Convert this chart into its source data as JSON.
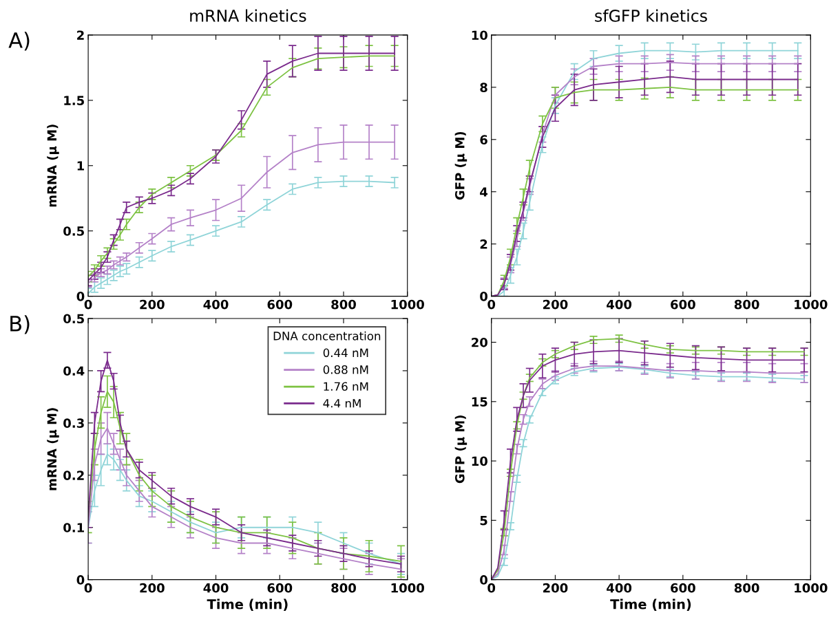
{
  "chart_data": [
    {
      "type": "line",
      "title": "mRNA kinetics",
      "ylabel": "mRNA (μ M)",
      "annotations": [
        "A)"
      ],
      "xlim": [
        0,
        1000
      ],
      "xticks": [
        0,
        200,
        400,
        600,
        800,
        1000
      ],
      "ylim": [
        0,
        2
      ],
      "yticks": [
        0,
        0.5,
        1,
        1.5,
        2
      ],
      "grid": false,
      "legend": false,
      "marker": "none",
      "line_style": "solid",
      "x": [
        0,
        20,
        40,
        60,
        80,
        100,
        120,
        160,
        200,
        260,
        320,
        400,
        480,
        560,
        640,
        720,
        800,
        880,
        960
      ],
      "series": [
        {
          "color": "#8fd4d8",
          "values": [
            0.02,
            0.07,
            0.1,
            0.13,
            0.16,
            0.19,
            0.21,
            0.26,
            0.31,
            0.38,
            0.43,
            0.5,
            0.57,
            0.7,
            0.82,
            0.87,
            0.88,
            0.88,
            0.87
          ],
          "errors": [
            0.04,
            0.04,
            0.04,
            0.04,
            0.04,
            0.04,
            0.04,
            0.04,
            0.04,
            0.04,
            0.04,
            0.04,
            0.04,
            0.04,
            0.04,
            0.04,
            0.04,
            0.04,
            0.04
          ]
        },
        {
          "color": "#b481c8",
          "values": [
            0.1,
            0.14,
            0.18,
            0.2,
            0.24,
            0.27,
            0.3,
            0.37,
            0.44,
            0.55,
            0.6,
            0.66,
            0.75,
            0.95,
            1.1,
            1.16,
            1.18,
            1.18,
            1.18
          ],
          "errors": [
            0.03,
            0.03,
            0.03,
            0.03,
            0.03,
            0.03,
            0.03,
            0.04,
            0.04,
            0.05,
            0.06,
            0.08,
            0.1,
            0.12,
            0.13,
            0.13,
            0.13,
            0.13,
            0.13
          ]
        },
        {
          "color": "#7dc242",
          "values": [
            0.15,
            0.2,
            0.27,
            0.33,
            0.4,
            0.47,
            0.55,
            0.68,
            0.78,
            0.87,
            0.96,
            1.08,
            1.27,
            1.6,
            1.75,
            1.82,
            1.83,
            1.84,
            1.84
          ],
          "errors": [
            0.04,
            0.04,
            0.04,
            0.04,
            0.04,
            0.04,
            0.04,
            0.04,
            0.04,
            0.04,
            0.04,
            0.04,
            0.05,
            0.06,
            0.07,
            0.08,
            0.08,
            0.08,
            0.08
          ]
        },
        {
          "color": "#7a2a8c",
          "values": [
            0.12,
            0.17,
            0.22,
            0.3,
            0.43,
            0.55,
            0.68,
            0.72,
            0.75,
            0.81,
            0.9,
            1.07,
            1.35,
            1.7,
            1.8,
            1.86,
            1.86,
            1.86,
            1.86
          ],
          "errors": [
            0.04,
            0.04,
            0.04,
            0.04,
            0.04,
            0.04,
            0.04,
            0.04,
            0.04,
            0.04,
            0.04,
            0.05,
            0.07,
            0.1,
            0.12,
            0.13,
            0.13,
            0.13,
            0.13
          ]
        }
      ]
    },
    {
      "type": "line",
      "title": "sfGFP kinetics",
      "ylabel": "GFP (μ M)",
      "xlim": [
        0,
        1000
      ],
      "xticks": [
        0,
        200,
        400,
        600,
        800,
        1000
      ],
      "ylim": [
        0,
        10
      ],
      "yticks": [
        0,
        2,
        4,
        6,
        8,
        10
      ],
      "grid": false,
      "legend": false,
      "marker": "none",
      "line_style": "solid",
      "x": [
        0,
        20,
        40,
        60,
        80,
        100,
        120,
        160,
        200,
        260,
        320,
        400,
        480,
        560,
        640,
        720,
        800,
        880,
        960
      ],
      "series": [
        {
          "color": "#8fd4d8",
          "values": [
            0,
            0,
            0.2,
            0.8,
            1.5,
            2.5,
            3.6,
            5.8,
            7.3,
            8.6,
            9.1,
            9.3,
            9.4,
            9.4,
            9.35,
            9.4,
            9.4,
            9.4,
            9.4
          ],
          "errors": [
            null,
            null,
            0.2,
            0.3,
            0.3,
            0.3,
            0.3,
            0.3,
            0.3,
            0.3,
            0.3,
            0.3,
            0.3,
            0.3,
            0.3,
            0.3,
            0.3,
            0.3,
            0.3
          ]
        },
        {
          "color": "#b481c8",
          "values": [
            0,
            0.05,
            0.5,
            1.2,
            2.2,
            3.2,
            4.2,
            6.2,
            7.7,
            8.4,
            8.8,
            8.9,
            8.9,
            8.95,
            8.9,
            8.9,
            8.9,
            8.9,
            8.9
          ],
          "errors": [
            null,
            null,
            0.2,
            0.3,
            0.3,
            0.3,
            0.3,
            0.3,
            0.3,
            0.3,
            0.3,
            0.3,
            0.3,
            0.3,
            0.3,
            0.3,
            0.3,
            0.3,
            0.3
          ]
        },
        {
          "color": "#7dc242",
          "values": [
            0,
            0.05,
            0.6,
            1.5,
            2.7,
            3.8,
            4.9,
            6.6,
            7.6,
            7.8,
            7.9,
            7.9,
            7.95,
            8.0,
            7.9,
            7.9,
            7.9,
            7.9,
            7.9
          ],
          "errors": [
            null,
            null,
            0.2,
            0.3,
            0.3,
            0.3,
            0.3,
            0.3,
            0.4,
            0.4,
            0.4,
            0.4,
            0.4,
            0.4,
            0.4,
            0.4,
            0.4,
            0.4,
            0.4
          ]
        },
        {
          "color": "#7a2a8c",
          "values": [
            0,
            0.05,
            0.45,
            1.3,
            2.4,
            3.3,
            4.3,
            6.1,
            7.2,
            7.9,
            8.1,
            8.2,
            8.3,
            8.4,
            8.3,
            8.3,
            8.3,
            8.3,
            8.3
          ],
          "errors": [
            null,
            null,
            0.2,
            0.3,
            0.3,
            0.3,
            0.3,
            0.4,
            0.5,
            0.6,
            0.6,
            0.6,
            0.6,
            0.6,
            0.6,
            0.6,
            0.6,
            0.6,
            0.6
          ]
        }
      ]
    },
    {
      "type": "line",
      "xlabel": "Time (min)",
      "ylabel": "mRNA (μ M)",
      "annotations": [
        "B)"
      ],
      "legend_title": "DNA concentration",
      "xlim": [
        0,
        1000
      ],
      "xticks": [
        0,
        200,
        400,
        600,
        800,
        1000
      ],
      "ylim": [
        0,
        0.5
      ],
      "yticks": [
        0,
        0.1,
        0.2,
        0.3,
        0.4,
        0.5
      ],
      "grid": false,
      "legend": "top right",
      "marker": "none",
      "line_style": "solid",
      "x": [
        0,
        20,
        40,
        60,
        80,
        100,
        120,
        160,
        200,
        260,
        320,
        400,
        480,
        560,
        640,
        720,
        800,
        880,
        980
      ],
      "series": [
        {
          "name": "0.44 nM",
          "color": "#8fd4d8",
          "values": [
            0.1,
            0.17,
            0.21,
            0.24,
            0.23,
            0.21,
            0.19,
            0.16,
            0.15,
            0.13,
            0.11,
            0.09,
            0.1,
            0.1,
            0.1,
            0.09,
            0.07,
            0.05,
            0.03
          ],
          "errors": [
            0.03,
            0.03,
            0.03,
            0.02,
            0.02,
            0.02,
            0.02,
            0.02,
            0.02,
            0.02,
            0.02,
            0.02,
            0.02,
            0.02,
            0.02,
            0.02,
            0.02,
            0.02,
            0.02
          ]
        },
        {
          "name": "0.88 nM",
          "color": "#b481c8",
          "values": [
            0.1,
            0.22,
            0.27,
            0.29,
            0.26,
            0.23,
            0.2,
            0.17,
            0.14,
            0.12,
            0.1,
            0.08,
            0.07,
            0.07,
            0.06,
            0.05,
            0.04,
            0.03,
            0.02
          ],
          "errors": [
            0.03,
            0.03,
            0.03,
            0.03,
            0.02,
            0.02,
            0.02,
            0.02,
            0.02,
            0.02,
            0.02,
            0.02,
            0.02,
            0.02,
            0.02,
            0.02,
            0.02,
            0.02,
            0.02
          ]
        },
        {
          "name": "1.76 nM",
          "color": "#7dc242",
          "values": [
            0.12,
            0.25,
            0.32,
            0.36,
            0.34,
            0.29,
            0.25,
            0.2,
            0.17,
            0.14,
            0.12,
            0.1,
            0.09,
            0.09,
            0.08,
            0.06,
            0.05,
            0.045,
            0.035
          ],
          "errors": [
            0.03,
            0.03,
            0.03,
            0.03,
            0.03,
            0.03,
            0.03,
            0.03,
            0.03,
            0.03,
            0.03,
            0.03,
            0.03,
            0.03,
            0.03,
            0.03,
            0.03,
            0.03,
            0.03
          ]
        },
        {
          "name": "4.4 nM",
          "color": "#7a2a8c",
          "values": [
            0.12,
            0.3,
            0.38,
            0.42,
            0.38,
            0.3,
            0.25,
            0.21,
            0.19,
            0.16,
            0.14,
            0.12,
            0.09,
            0.08,
            0.07,
            0.06,
            0.05,
            0.04,
            0.03
          ],
          "errors": [
            0.02,
            0.02,
            0.02,
            0.015,
            0.015,
            0.015,
            0.015,
            0.015,
            0.015,
            0.015,
            0.015,
            0.015,
            0.015,
            0.015,
            0.015,
            0.015,
            0.015,
            0.015,
            0.015
          ]
        }
      ]
    },
    {
      "type": "line",
      "xlabel": "Time (min)",
      "ylabel": "GFP (μ M)",
      "xlim": [
        0,
        1000
      ],
      "xticks": [
        0,
        200,
        400,
        600,
        800,
        1000
      ],
      "ylim": [
        0,
        22
      ],
      "yticks": [
        0,
        5,
        10,
        15,
        20
      ],
      "grid": false,
      "legend": false,
      "marker": "none",
      "line_style": "solid",
      "x": [
        0,
        20,
        40,
        60,
        80,
        100,
        120,
        160,
        200,
        260,
        320,
        400,
        480,
        560,
        640,
        720,
        800,
        880,
        980
      ],
      "series": [
        {
          "color": "#8fd4d8",
          "values": [
            0,
            0.3,
            1.5,
            4.5,
            8.5,
            11.5,
            13.5,
            15.8,
            16.8,
            17.5,
            17.8,
            17.9,
            17.7,
            17.4,
            17.2,
            17.1,
            17.1,
            17,
            16.9
          ],
          "errors": [
            null,
            null,
            0.3,
            0.3,
            0.3,
            0.3,
            0.3,
            0.3,
            0.3,
            0.3,
            0.3,
            0.3,
            0.3,
            0.3,
            0.3,
            0.3,
            0.3,
            0.3,
            0.3
          ]
        },
        {
          "color": "#b481c8",
          "values": [
            0,
            0.5,
            2.5,
            7,
            11,
            13.5,
            15,
            16.5,
            17.2,
            17.8,
            18,
            18,
            17.8,
            17.6,
            17.6,
            17.5,
            17.5,
            17.4,
            17.4
          ],
          "errors": [
            null,
            null,
            0.4,
            0.4,
            0.4,
            0.4,
            0.4,
            0.4,
            0.4,
            0.4,
            0.4,
            0.4,
            0.5,
            0.6,
            0.7,
            0.8,
            0.8,
            0.8,
            0.8
          ]
        },
        {
          "color": "#7dc242",
          "values": [
            0,
            0.8,
            4,
            9,
            13,
            15.5,
            17,
            18.3,
            19,
            19.7,
            20.2,
            20.3,
            19.8,
            19.4,
            19.3,
            19.3,
            19.2,
            19.2,
            19.2
          ],
          "errors": [
            null,
            null,
            0.3,
            0.3,
            0.3,
            0.3,
            0.3,
            0.3,
            0.3,
            0.3,
            0.3,
            0.3,
            0.3,
            0.3,
            0.3,
            0.3,
            0.3,
            0.3,
            0.3
          ]
        },
        {
          "color": "#7a2a8c",
          "values": [
            0,
            1,
            5,
            10,
            13.5,
            15.5,
            16.8,
            18,
            18.5,
            19,
            19.2,
            19.3,
            19.1,
            18.9,
            18.7,
            18.6,
            18.5,
            18.5,
            18.5
          ],
          "errors": [
            null,
            null,
            0.8,
            1,
            1,
            1,
            1,
            1,
            1,
            1,
            1,
            1,
            1,
            1,
            1,
            1,
            1,
            1,
            1
          ]
        }
      ]
    }
  ]
}
